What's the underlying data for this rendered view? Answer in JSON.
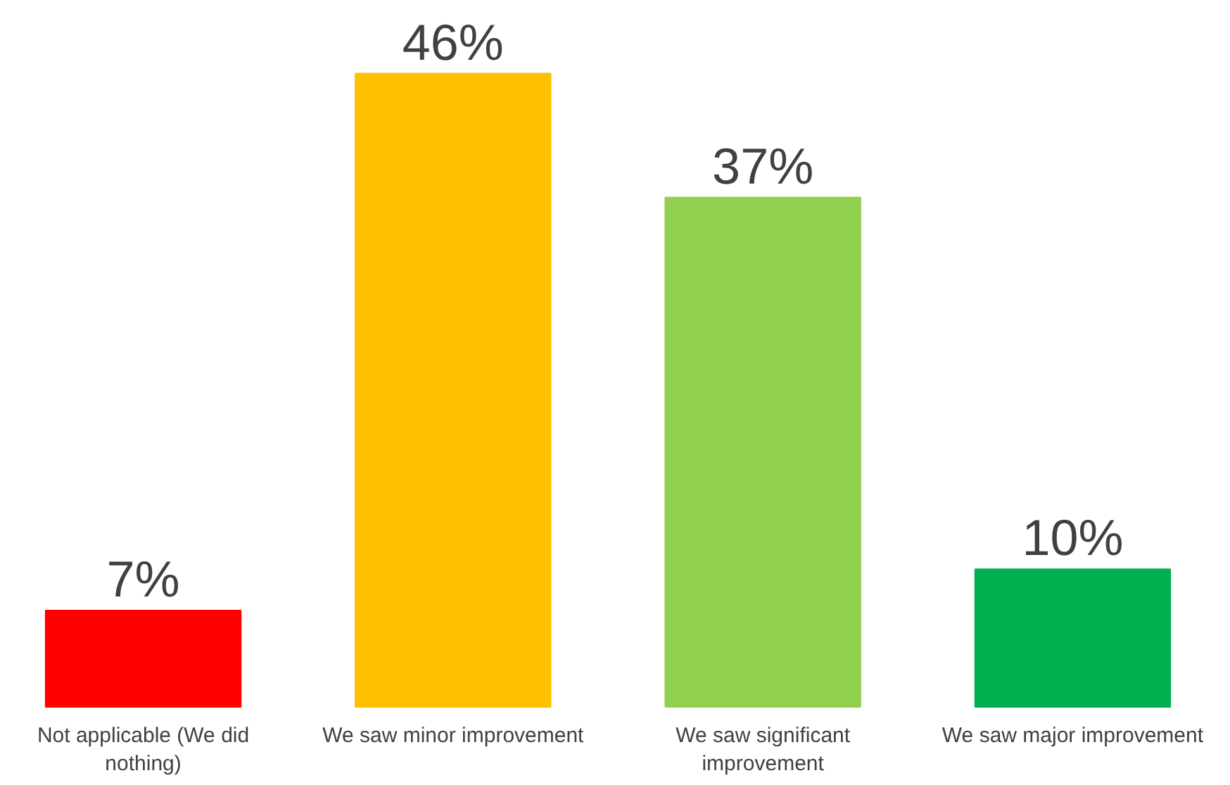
{
  "chart_data": {
    "type": "bar",
    "categories": [
      "Not applicable (We did nothing)",
      "We saw minor improvement",
      "We saw significant improvement",
      "We saw major improvement"
    ],
    "values": [
      7,
      46,
      37,
      10
    ],
    "colors": [
      "#ff0000",
      "#ffc000",
      "#92d050",
      "#00b050"
    ],
    "value_labels": [
      "7%",
      "46%",
      "37%",
      "10%"
    ],
    "grid": false
  }
}
